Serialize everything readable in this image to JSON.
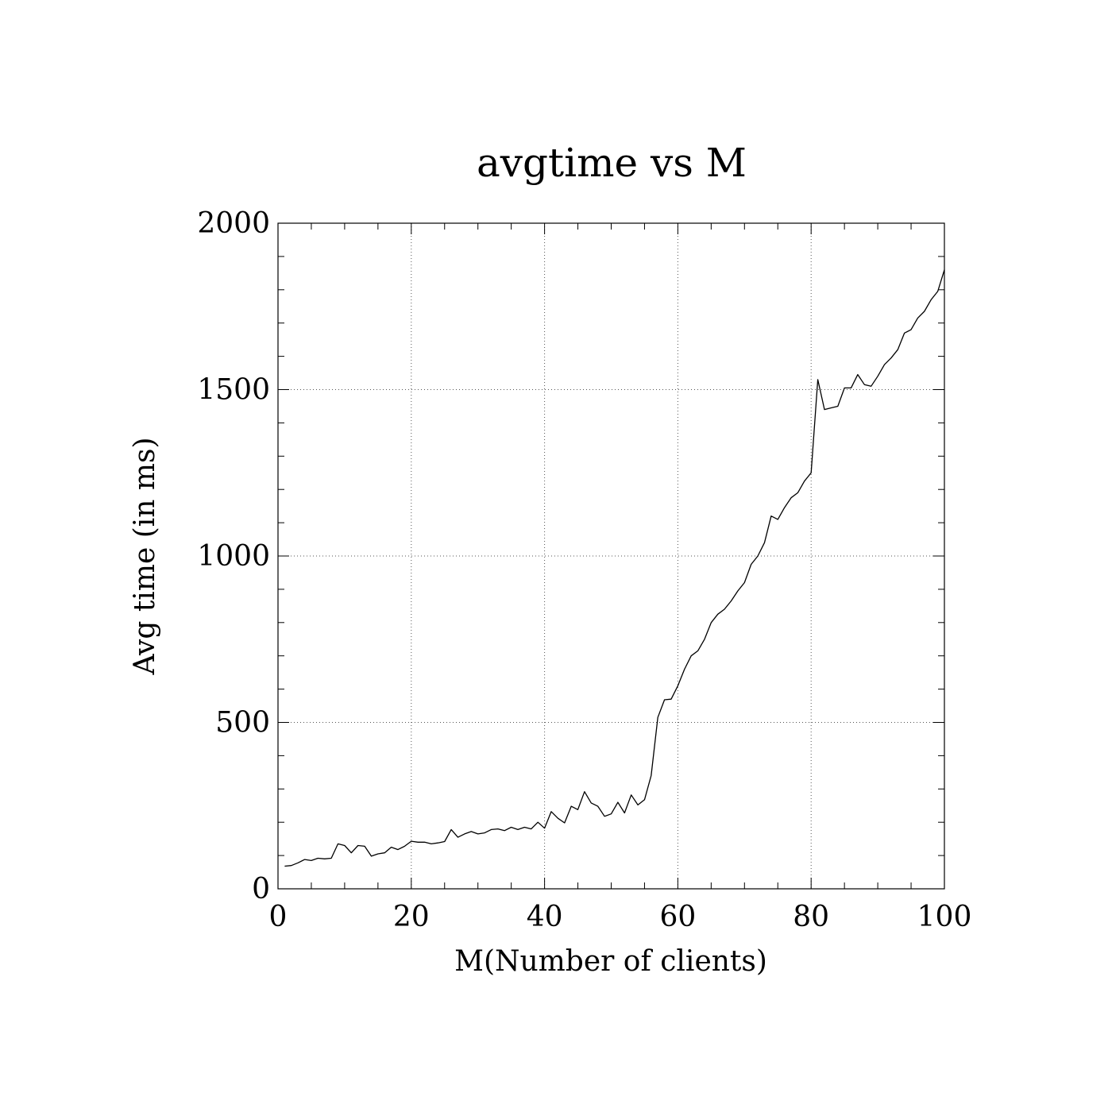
{
  "chart_data": {
    "type": "line",
    "title": "avgtime vs M",
    "xlabel": "M(Number of clients)",
    "ylabel": "Avg time (in ms)",
    "xlim": [
      0,
      100
    ],
    "ylim": [
      0,
      2000
    ],
    "xticks": [
      0,
      20,
      40,
      60,
      80,
      100
    ],
    "yticks": [
      0,
      500,
      1000,
      1500,
      2000
    ],
    "x_minor_step": 5,
    "y_minor_step": 100,
    "grid": true,
    "series": [
      {
        "x": [
          1,
          2,
          3,
          4,
          5,
          6,
          7,
          8,
          9,
          10,
          11,
          12,
          13,
          14,
          15,
          16,
          17,
          18,
          19,
          20,
          21,
          22,
          23,
          24,
          25,
          26,
          27,
          28,
          29,
          30,
          31,
          32,
          33,
          34,
          35,
          36,
          37,
          38,
          39,
          40,
          41,
          42,
          43,
          44,
          45,
          46,
          47,
          48,
          49,
          50,
          51,
          52,
          53,
          54,
          55,
          56,
          57,
          58,
          59,
          60,
          61,
          62,
          63,
          64,
          65,
          66,
          67,
          68,
          69,
          70,
          71,
          72,
          73,
          74,
          75,
          76,
          77,
          78,
          79,
          80,
          81,
          82,
          83,
          84,
          85,
          86,
          87,
          88,
          89,
          90,
          91,
          92,
          93,
          94,
          95,
          96,
          97,
          98,
          99,
          100
        ],
        "y": [
          68,
          70,
          78,
          88,
          85,
          92,
          90,
          92,
          135,
          130,
          108,
          130,
          128,
          98,
          105,
          108,
          125,
          118,
          128,
          143,
          140,
          140,
          135,
          138,
          142,
          178,
          155,
          165,
          172,
          165,
          168,
          178,
          180,
          175,
          185,
          178,
          185,
          180,
          200,
          182,
          232,
          212,
          198,
          248,
          238,
          292,
          258,
          248,
          218,
          225,
          260,
          228,
          282,
          252,
          268,
          340,
          515,
          568,
          570,
          610,
          660,
          700,
          715,
          750,
          800,
          825,
          840,
          865,
          895,
          920,
          975,
          1000,
          1040,
          1120,
          1110,
          1145,
          1175,
          1190,
          1225,
          1250,
          1530,
          1440,
          1445,
          1450,
          1505,
          1505,
          1545,
          1515,
          1510,
          1540,
          1575,
          1595,
          1620,
          1670,
          1680,
          1715,
          1735,
          1770,
          1795,
          1860
        ]
      }
    ]
  }
}
